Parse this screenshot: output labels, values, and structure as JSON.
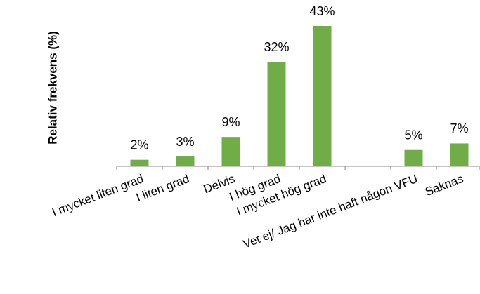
{
  "chart_data": {
    "type": "bar",
    "y_label": "Relativ frekvens (%)",
    "categories": [
      "I mycket liten grad",
      "I liten grad",
      "Delvis",
      "I hög grad",
      "I mycket hög grad",
      null,
      "Vet ej/ Jag har inte haft någon VFU",
      "Saknas"
    ],
    "values": [
      2,
      3,
      9,
      32,
      43,
      null,
      5,
      7
    ],
    "value_labels": [
      "2%",
      "3%",
      "9%",
      "32%",
      "43%",
      null,
      "5%",
      "7%"
    ],
    "color": "#70ad47",
    "ylim": [
      0,
      43
    ]
  }
}
